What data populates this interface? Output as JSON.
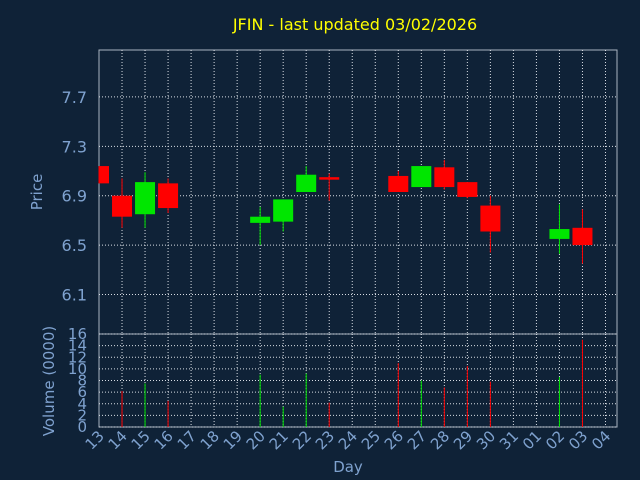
{
  "chart_data": {
    "type": "candlestick",
    "title": "JFIN - last updated 03/02/2026",
    "xlabel": "Day",
    "colors": {
      "background": "#0f2237",
      "axes": "#aab4c0",
      "grid": "#d8dde4",
      "title": "#ffff00",
      "labels": "#7fa2cf",
      "up": "#00e600",
      "down": "#ff0000"
    },
    "x_ticks": [
      "13",
      "14",
      "15",
      "16",
      "17",
      "18",
      "19",
      "20",
      "21",
      "22",
      "23",
      "24",
      "25",
      "26",
      "27",
      "28",
      "29",
      "30",
      "31",
      "01",
      "02",
      "03",
      "04"
    ],
    "price_panel": {
      "ylabel": "Price",
      "ylim": [
        5.78,
        8.08
      ],
      "yticks": [
        6.1,
        6.5,
        6.9,
        7.3,
        7.7
      ]
    },
    "volume_panel": {
      "ylabel": "Volume (0000)",
      "ylim": [
        0,
        16
      ],
      "yticks": [
        0,
        2,
        4,
        6,
        8,
        10,
        12,
        14,
        16
      ]
    },
    "candles": [
      {
        "day": "13",
        "open": 7.14,
        "high": 7.14,
        "low": 7.0,
        "close": 7.0
      },
      {
        "day": "14",
        "open": 6.9,
        "high": 7.04,
        "low": 6.64,
        "close": 6.73
      },
      {
        "day": "15",
        "open": 6.75,
        "high": 7.09,
        "low": 6.64,
        "close": 7.01
      },
      {
        "day": "16",
        "open": 7.0,
        "high": 7.04,
        "low": 6.76,
        "close": 6.8
      },
      {
        "day": "20",
        "open": 6.68,
        "high": 6.81,
        "low": 6.5,
        "close": 6.73
      },
      {
        "day": "21",
        "open": 6.69,
        "high": 6.87,
        "low": 6.61,
        "close": 6.87
      },
      {
        "day": "22",
        "open": 6.93,
        "high": 7.14,
        "low": 6.93,
        "close": 7.07
      },
      {
        "day": "23",
        "open": 7.05,
        "high": 7.08,
        "low": 6.86,
        "close": 7.03
      },
      {
        "day": "26",
        "open": 7.06,
        "high": 7.1,
        "low": 6.93,
        "close": 6.93
      },
      {
        "day": "27",
        "open": 6.97,
        "high": 7.14,
        "low": 6.97,
        "close": 7.14
      },
      {
        "day": "28",
        "open": 7.13,
        "high": 7.19,
        "low": 6.95,
        "close": 6.97
      },
      {
        "day": "29",
        "open": 7.01,
        "high": 7.01,
        "low": 6.88,
        "close": 6.89
      },
      {
        "day": "30",
        "open": 6.82,
        "high": 6.9,
        "low": 6.44,
        "close": 6.61
      },
      {
        "day": "02",
        "open": 6.55,
        "high": 6.83,
        "low": 6.43,
        "close": 6.63
      },
      {
        "day": "03",
        "open": 6.64,
        "high": 6.79,
        "low": 6.35,
        "close": 6.5
      }
    ],
    "volume": [
      {
        "day": "14",
        "value": 6.2,
        "direction": "down"
      },
      {
        "day": "15",
        "value": 7.5,
        "direction": "up"
      },
      {
        "day": "16",
        "value": 4.5,
        "direction": "down"
      },
      {
        "day": "20",
        "value": 9.0,
        "direction": "up"
      },
      {
        "day": "21",
        "value": 3.5,
        "direction": "up"
      },
      {
        "day": "22",
        "value": 9.2,
        "direction": "up"
      },
      {
        "day": "23",
        "value": 4.2,
        "direction": "down"
      },
      {
        "day": "26",
        "value": 11.0,
        "direction": "down"
      },
      {
        "day": "27",
        "value": 8.0,
        "direction": "up"
      },
      {
        "day": "28",
        "value": 6.8,
        "direction": "down"
      },
      {
        "day": "29",
        "value": 10.5,
        "direction": "down"
      },
      {
        "day": "30",
        "value": 7.8,
        "direction": "down"
      },
      {
        "day": "02",
        "value": 8.6,
        "direction": "up"
      },
      {
        "day": "03",
        "value": 15.0,
        "direction": "down"
      }
    ]
  }
}
